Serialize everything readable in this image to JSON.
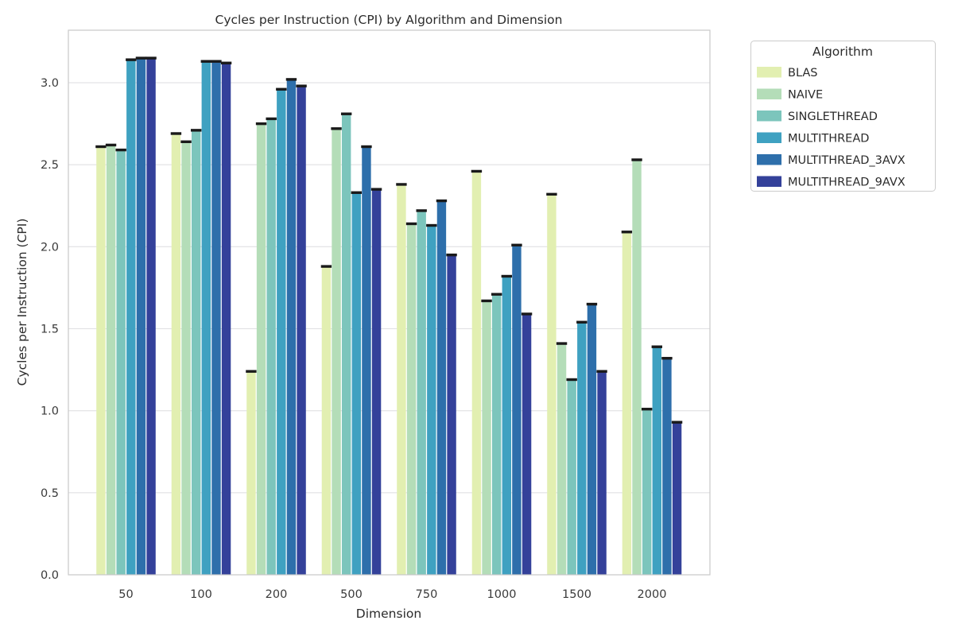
{
  "title": "Cycles per Instruction (CPI) by Algorithm and Dimension",
  "xlabel": "Dimension",
  "ylabel": "Cycles per Instruction (CPI)",
  "legend": {
    "title": "Algorithm",
    "entries": [
      "BLAS",
      "NAIVE",
      "SINGLETHREAD",
      "MULTITHREAD",
      "MULTITHREAD_3AVX",
      "MULTITHREAD_9AVX"
    ]
  },
  "colors": {
    "background": "#ffffff",
    "grid": "#e0e0e3",
    "spine": "#c9c9c9",
    "error_cap": "#1a1a1a",
    "text": "#2b2b2b",
    "tick_text": "#3a3a3a",
    "legend_border": "#cccccc"
  },
  "chart_data": {
    "type": "bar",
    "title": "Cycles per Instruction (CPI) by Algorithm and Dimension",
    "xlabel": "Dimension",
    "ylabel": "Cycles per Instruction (CPI)",
    "categories": [
      "50",
      "100",
      "200",
      "500",
      "750",
      "1000",
      "1500",
      "2000"
    ],
    "series": [
      {
        "name": "BLAS",
        "color": "#e2efb1",
        "values": [
          2.61,
          2.69,
          1.24,
          1.88,
          2.38,
          2.46,
          2.32,
          2.09
        ]
      },
      {
        "name": "NAIVE",
        "color": "#b4ddb8",
        "values": [
          2.62,
          2.64,
          2.75,
          2.72,
          2.14,
          1.67,
          1.41,
          2.53
        ]
      },
      {
        "name": "SINGLETHREAD",
        "color": "#7cc5bc",
        "values": [
          2.59,
          2.71,
          2.78,
          2.81,
          2.22,
          1.71,
          1.19,
          1.01
        ]
      },
      {
        "name": "MULTITHREAD",
        "color": "#3fa1c1",
        "values": [
          3.14,
          3.13,
          2.96,
          2.33,
          2.13,
          1.82,
          1.54,
          1.39
        ]
      },
      {
        "name": "MULTITHREAD_3AVX",
        "color": "#2e6fab",
        "values": [
          3.15,
          3.13,
          3.02,
          2.61,
          2.28,
          2.01,
          1.65,
          1.32
        ]
      },
      {
        "name": "MULTITHREAD_9AVX",
        "color": "#34419a",
        "values": [
          3.15,
          3.12,
          2.98,
          2.35,
          1.95,
          1.59,
          1.24,
          0.93
        ]
      }
    ],
    "yticks": [
      "0.0",
      "0.5",
      "1.0",
      "1.5",
      "2.0",
      "2.5",
      "3.0"
    ],
    "ylim": [
      0,
      3.32
    ],
    "grid": true,
    "error_caps": true,
    "legend_title": "Algorithm",
    "legend_position": "outside-upper-right"
  }
}
